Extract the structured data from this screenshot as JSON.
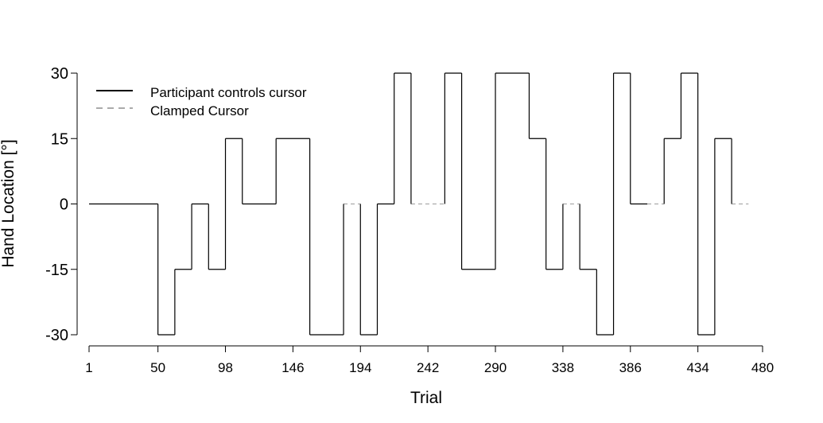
{
  "chart_data": {
    "type": "line",
    "xlabel": "Trial",
    "ylabel": "Hand Location [°]",
    "xlim": [
      1,
      480
    ],
    "ylim": [
      -30,
      30
    ],
    "xticks": [
      1,
      50,
      98,
      146,
      194,
      242,
      290,
      338,
      386,
      434,
      480
    ],
    "yticks": [
      -30,
      -15,
      0,
      15,
      30
    ],
    "legend_position": "top-left",
    "grid": false,
    "series": [
      {
        "name": "Participant controls cursor",
        "style": "solid",
        "color": "#000000",
        "segments": [
          {
            "x": [
              1,
              50
            ],
            "y": 0
          },
          {
            "x": [
              50,
              62
            ],
            "y": -30
          },
          {
            "x": [
              62,
              74
            ],
            "y": -15
          },
          {
            "x": [
              74,
              86
            ],
            "y": 0
          },
          {
            "x": [
              86,
              98
            ],
            "y": -15
          },
          {
            "x": [
              98,
              110
            ],
            "y": 15
          },
          {
            "x": [
              110,
              134
            ],
            "y": 0
          },
          {
            "x": [
              134,
              158
            ],
            "y": 15
          },
          {
            "x": [
              158,
              182
            ],
            "y": -30
          },
          {
            "x": [
              194,
              206
            ],
            "y": -30
          },
          {
            "x": [
              206,
              218
            ],
            "y": 0
          },
          {
            "x": [
              218,
              230
            ],
            "y": 30
          },
          {
            "x": [
              254,
              266
            ],
            "y": 30
          },
          {
            "x": [
              266,
              290
            ],
            "y": -15
          },
          {
            "x": [
              290,
              314
            ],
            "y": 30
          },
          {
            "x": [
              314,
              326
            ],
            "y": 15
          },
          {
            "x": [
              326,
              338
            ],
            "y": -15
          },
          {
            "x": [
              350,
              362
            ],
            "y": -15
          },
          {
            "x": [
              362,
              374
            ],
            "y": -30
          },
          {
            "x": [
              374,
              386
            ],
            "y": 30
          },
          {
            "x": [
              386,
              398
            ],
            "y": 0
          },
          {
            "x": [
              410,
              422
            ],
            "y": 15
          },
          {
            "x": [
              422,
              434
            ],
            "y": 30
          },
          {
            "x": [
              434,
              446
            ],
            "y": -30
          },
          {
            "x": [
              446,
              458
            ],
            "y": 15
          }
        ]
      },
      {
        "name": "Clamped Cursor",
        "style": "dashed",
        "color": "#aaaaaa",
        "segments": [
          {
            "x": [
              182,
              194
            ],
            "y": 0
          },
          {
            "x": [
              230,
              254
            ],
            "y": 0
          },
          {
            "x": [
              338,
              350
            ],
            "y": 0
          },
          {
            "x": [
              398,
              410
            ],
            "y": 0
          },
          {
            "x": [
              458,
              470
            ],
            "y": 0
          }
        ]
      }
    ]
  }
}
